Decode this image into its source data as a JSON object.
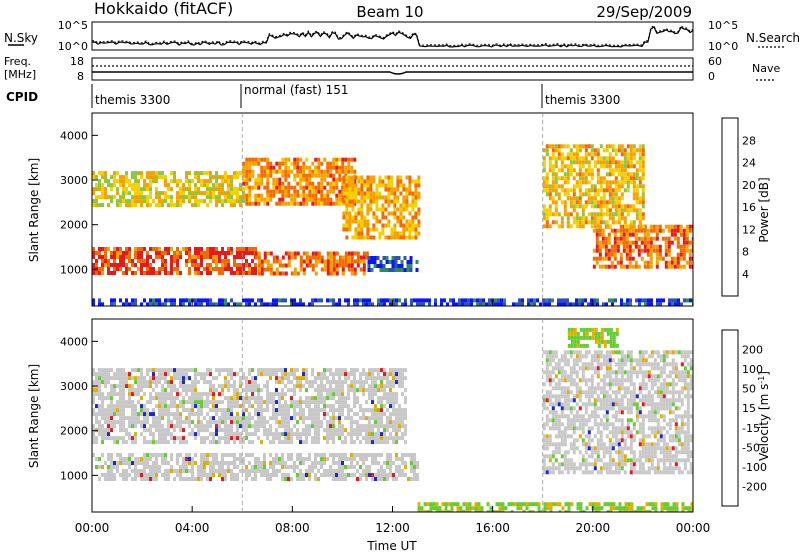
{
  "header": {
    "station": "Hokkaido (fitACF)",
    "beam": "Beam 10",
    "date": "29/Sep/2009"
  },
  "aux_panels": {
    "nsky_label": "N.Sky",
    "nsearch_label": "N.Search",
    "nsky_ticks": [
      "10^5",
      "10^0"
    ],
    "nsearch_ticks": [
      "10^5",
      "10^0"
    ],
    "freq_label_line1": "Freq.",
    "freq_label_line2": "[MHz]",
    "freq_ticks": [
      "18",
      "8"
    ],
    "nave_label": "Nave",
    "nave_ticks": [
      "60",
      "0"
    ],
    "cpid_label": "CPID",
    "cpid_segments": [
      {
        "label": "themis 3300",
        "start_hour": 0
      },
      {
        "label": "normal (fast) 151",
        "start_hour": 6
      },
      {
        "label": "themis 3300",
        "start_hour": 18
      }
    ]
  },
  "axes": {
    "ylabel": "Slant Range [km]",
    "xlabel": "Time UT",
    "yticks": [
      "1000",
      "2000",
      "3000",
      "4000"
    ],
    "xticks": [
      "00:00",
      "04:00",
      "08:00",
      "12:00",
      "16:00",
      "20:00",
      "00:00"
    ]
  },
  "colorbars": {
    "power": {
      "label": "Power [dB]",
      "ticks": [
        "4",
        "8",
        "12",
        "16",
        "20",
        "24",
        "28"
      ],
      "colors": [
        "#0a14ff",
        "#2a52b8",
        "#2f8c5a",
        "#8dc63f",
        "#f4d000",
        "#f5a200",
        "#f26a00",
        "#e41a1c"
      ]
    },
    "velocity": {
      "label": "Velocity [m s",
      "label_sup": "-1",
      "label_end": "]",
      "ticks": [
        "200",
        "100",
        "50",
        "15",
        "-15",
        "-50",
        "-100",
        "-200"
      ],
      "colors": [
        "#1a2ad0",
        "#2a5fb0",
        "#2e8b57",
        "#66cc33",
        "#c8c8c8",
        "#e0b000",
        "#f08000",
        "#f04010",
        "#e41a1c"
      ]
    }
  },
  "chart_data": [
    {
      "type": "heatmap",
      "title": "Power",
      "xlabel": "Time UT",
      "ylabel": "Slant Range [km]",
      "x_range_hours": [
        0,
        24
      ],
      "ylim": [
        180,
        4500
      ],
      "regions": [
        {
          "t": [
            0,
            6.5
          ],
          "range": [
            900,
            1500
          ],
          "level": 28
        },
        {
          "t": [
            6.5,
            11
          ],
          "range": [
            900,
            1400
          ],
          "level": 26
        },
        {
          "t": [
            11,
            13
          ],
          "range": [
            950,
            1300
          ],
          "level": 6
        },
        {
          "t": [
            0,
            6
          ],
          "range": [
            2400,
            3200
          ],
          "level": 18
        },
        {
          "t": [
            6,
            10.5
          ],
          "range": [
            2500,
            3500
          ],
          "level": 24
        },
        {
          "t": [
            10,
            13
          ],
          "range": [
            1700,
            3100
          ],
          "level": 22
        },
        {
          "t": [
            20,
            24
          ],
          "range": [
            1100,
            2000
          ],
          "level": 26
        },
        {
          "t": [
            18,
            22
          ],
          "range": [
            2000,
            3800
          ],
          "level": 20
        },
        {
          "t": [
            0,
            24
          ],
          "range": [
            180,
            350
          ],
          "level": 4
        }
      ]
    },
    {
      "type": "heatmap",
      "title": "Velocity",
      "xlabel": "Time UT",
      "ylabel": "Slant Range [km]",
      "x_range_hours": [
        0,
        24
      ],
      "ylim": [
        180,
        4500
      ],
      "regions": [
        {
          "t": [
            0,
            13
          ],
          "range": [
            900,
            1500
          ],
          "velocity": 0
        },
        {
          "t": [
            0,
            12.5
          ],
          "range": [
            1700,
            3400
          ],
          "velocity": 0
        },
        {
          "t": [
            18,
            24
          ],
          "range": [
            1100,
            3800
          ],
          "velocity": 0
        },
        {
          "t": [
            19,
            21
          ],
          "range": [
            3900,
            4300
          ],
          "velocity": 60
        },
        {
          "t": [
            13,
            24
          ],
          "range": [
            180,
            400
          ],
          "velocity": 40
        }
      ]
    }
  ]
}
